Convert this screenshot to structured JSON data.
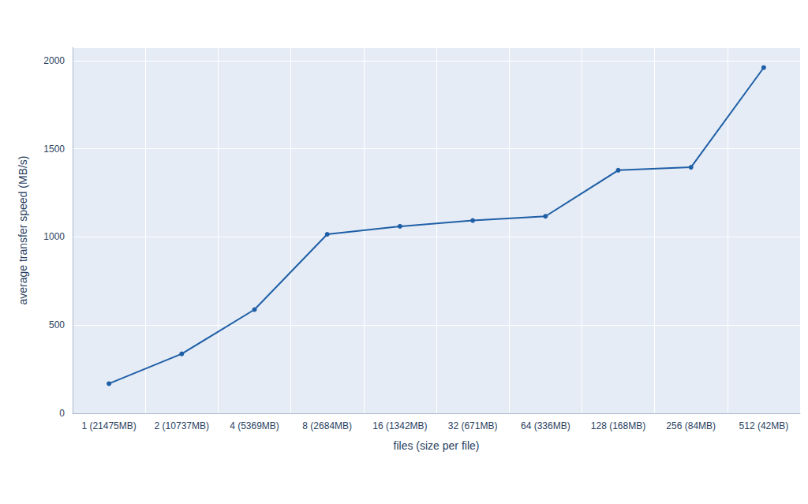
{
  "chart_data": {
    "type": "line",
    "x_label": "files (size per file)",
    "y_label": "average transfer speed (MB/s)",
    "categories": [
      "1 (21475MB)",
      "2 (10737MB)",
      "4 (5369MB)",
      "8 (2684MB)",
      "16 (1342MB)",
      "32 (671MB)",
      "64 (336MB)",
      "128 (168MB)",
      "256 (84MB)",
      "512 (42MB)"
    ],
    "values": [
      168,
      337,
      588,
      1015,
      1060,
      1093,
      1117,
      1378,
      1395,
      1960
    ],
    "color": "#1f5fa6",
    "marker": "circle",
    "ylim": [
      0,
      2075
    ],
    "yticks": [
      0,
      500,
      1000,
      1500,
      2000
    ],
    "grid": true
  }
}
